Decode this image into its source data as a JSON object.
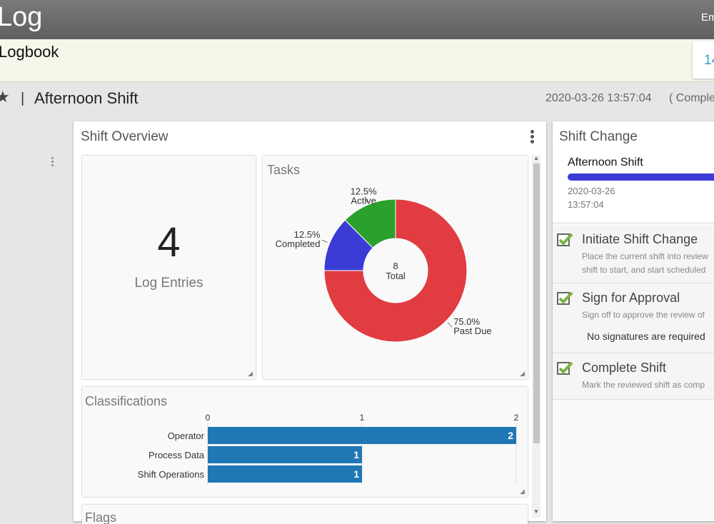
{
  "header": {
    "app_title": "Log",
    "user_partial": "Em"
  },
  "subheader": {
    "logbook_title": "Logbook",
    "counter_partial": "14"
  },
  "shift_bar": {
    "shift_name": "Afternoon Shift",
    "separator": "|",
    "timestamp": "2020-03-26 13:57:04",
    "status_partial": "( Comple"
  },
  "overview": {
    "title": "Shift Overview",
    "log_entries": {
      "count": "4",
      "label": "Log Entries"
    },
    "tasks": {
      "title": "Tasks",
      "center_value": "8",
      "center_label": "Total"
    },
    "classifications": {
      "title": "Classifications"
    },
    "flags": {
      "title": "Flags"
    }
  },
  "shift_change": {
    "title": "Shift Change",
    "shift_label": "Afternoon Shift",
    "date": "2020-03-26",
    "time": "13:57:04",
    "steps": [
      {
        "title": "Initiate Shift Change",
        "desc_line1": "Place the current shift into review",
        "desc_line2": "shift to start, and start scheduled"
      },
      {
        "title": "Sign for Approval",
        "desc_line1": "Sign off to approve the review of",
        "note": "No signatures are required"
      },
      {
        "title": "Complete Shift",
        "desc_line1": "Mark the reviewed shift as comp"
      }
    ]
  },
  "colors": {
    "past_due": "#e03c41",
    "completed": "#3b3bd6",
    "active": "#2ca02c",
    "bar": "#1f77b4",
    "topbar": "#6a6a6a",
    "check": "#7cb342"
  },
  "chart_data": [
    {
      "type": "pie",
      "title": "Tasks",
      "categories": [
        "Past Due",
        "Completed",
        "Active"
      ],
      "values": [
        75.0,
        12.5,
        12.5
      ],
      "labels": [
        "75.0%",
        "12.5%",
        "12.5%"
      ],
      "center_text": [
        "8",
        "Total"
      ]
    },
    {
      "type": "bar",
      "orientation": "horizontal",
      "title": "Classifications",
      "categories": [
        "Operator",
        "Process Data",
        "Shift Operations"
      ],
      "values": [
        2,
        1,
        1
      ],
      "xlim": [
        0,
        2
      ],
      "ticks": [
        "0",
        "1",
        "2"
      ]
    }
  ]
}
